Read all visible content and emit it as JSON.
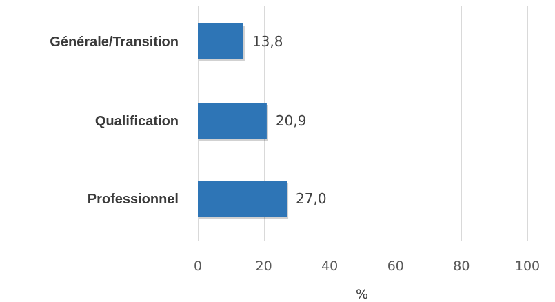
{
  "chart_data": {
    "type": "bar",
    "orientation": "horizontal",
    "categories": [
      "Générale/Transition",
      "Qualification",
      "Professionnel"
    ],
    "values": [
      13.8,
      20.9,
      27.0
    ],
    "data_labels": [
      "13,8",
      "20,9",
      "27,0"
    ],
    "title": "",
    "xlabel": "%",
    "ylabel": "",
    "xlim": [
      0,
      100
    ],
    "xticks": [
      0,
      20,
      40,
      60,
      80,
      100
    ],
    "xtick_labels": [
      "0",
      "20",
      "40",
      "60",
      "80",
      "100"
    ],
    "grid": "vertical",
    "legend": "none",
    "bar_color": "#2E75B6"
  }
}
